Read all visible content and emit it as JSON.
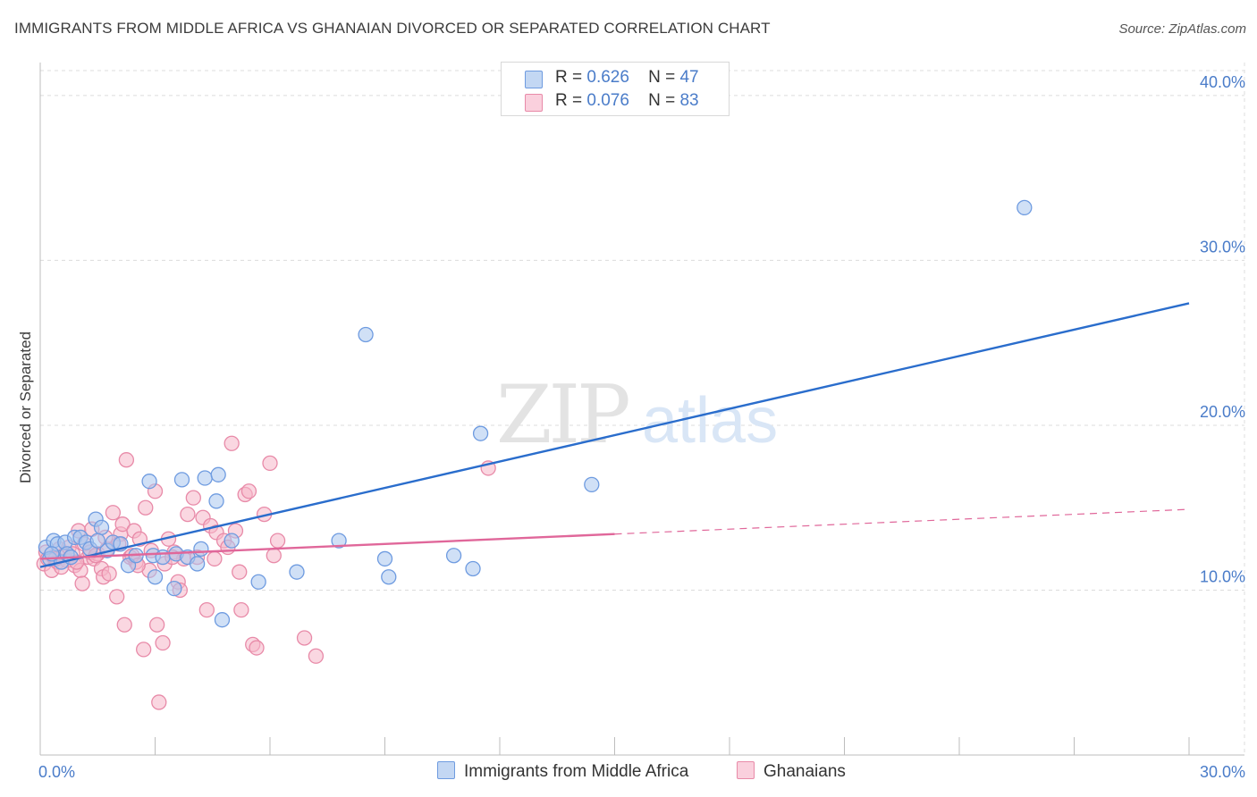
{
  "header": {
    "title": "IMMIGRANTS FROM MIDDLE AFRICA VS GHANAIAN DIVORCED OR SEPARATED CORRELATION CHART",
    "source": "Source: ZipAtlas.com"
  },
  "watermark": {
    "zip": "ZIP",
    "atlas": "atlas"
  },
  "legend": {
    "r_label": "R =",
    "n_label": "N =",
    "series": [
      {
        "r": "0.626",
        "n": "47"
      },
      {
        "r": "0.076",
        "n": "83"
      }
    ]
  },
  "bottom_legend": {
    "series1": "Immigrants from Middle Africa",
    "series2": "Ghanaians"
  },
  "colors": {
    "blue_fill": "#a9c6ef",
    "blue_stroke": "#6e9be0",
    "blue_line": "#2a6dcc",
    "pink_fill": "#f6b6c9",
    "pink_stroke": "#e88aa8",
    "pink_line": "#e0679a",
    "axis_text": "#4a7cc9",
    "grid": "#dcdcdc"
  },
  "chart_data": {
    "type": "scatter",
    "title": "IMMIGRANTS FROM MIDDLE AFRICA VS GHANAIAN DIVORCED OR SEPARATED CORRELATION CHART",
    "xlabel": "",
    "ylabel": "Divorced or Separated",
    "xlim": [
      0,
      30
    ],
    "ylim": [
      0,
      42
    ],
    "x_tick_labels": [
      "0.0%",
      "30.0%"
    ],
    "y_ticks": [
      10,
      20,
      30,
      40
    ],
    "y_tick_labels": [
      "10.0%",
      "20.0%",
      "30.0%",
      "40.0%"
    ],
    "grid": true,
    "legend_position": "top-center",
    "series": [
      {
        "name": "Immigrants from Middle Africa",
        "r": 0.626,
        "n": 47,
        "trend": {
          "x0": 0,
          "y0": 11.4,
          "x1": 30,
          "y1": 27.4,
          "dashed_from": null
        },
        "points": [
          [
            0.15,
            12.6
          ],
          [
            0.25,
            11.9
          ],
          [
            0.35,
            13.0
          ],
          [
            0.45,
            12.8
          ],
          [
            0.55,
            11.7
          ],
          [
            0.65,
            12.9
          ],
          [
            0.7,
            12.2
          ],
          [
            0.8,
            12.0
          ],
          [
            0.9,
            13.2
          ],
          [
            1.05,
            13.2
          ],
          [
            1.2,
            12.9
          ],
          [
            1.3,
            12.5
          ],
          [
            1.45,
            14.3
          ],
          [
            1.6,
            13.8
          ],
          [
            1.75,
            12.4
          ],
          [
            1.9,
            12.9
          ],
          [
            2.1,
            12.8
          ],
          [
            2.3,
            11.5
          ],
          [
            2.5,
            12.1
          ],
          [
            2.85,
            16.6
          ],
          [
            2.95,
            12.1
          ],
          [
            3.0,
            10.8
          ],
          [
            3.2,
            12.0
          ],
          [
            3.5,
            10.1
          ],
          [
            3.55,
            12.2
          ],
          [
            3.7,
            16.7
          ],
          [
            3.85,
            12.0
          ],
          [
            4.1,
            11.6
          ],
          [
            4.2,
            12.5
          ],
          [
            4.3,
            16.8
          ],
          [
            4.6,
            15.4
          ],
          [
            4.65,
            17.0
          ],
          [
            4.75,
            8.2
          ],
          [
            5.0,
            13.0
          ],
          [
            5.7,
            10.5
          ],
          [
            6.7,
            11.1
          ],
          [
            7.8,
            13.0
          ],
          [
            8.5,
            25.5
          ],
          [
            9.0,
            11.9
          ],
          [
            9.1,
            10.8
          ],
          [
            10.8,
            12.1
          ],
          [
            11.3,
            11.3
          ],
          [
            11.5,
            19.5
          ],
          [
            14.4,
            16.4
          ],
          [
            25.7,
            33.2
          ],
          [
            0.3,
            12.2
          ],
          [
            1.5,
            13.0
          ]
        ]
      },
      {
        "name": "Ghanaians",
        "r": 0.076,
        "n": 83,
        "trend": {
          "x0": 0,
          "y0": 11.9,
          "x1": 30,
          "y1": 14.9,
          "dashed_from": 15.0
        },
        "points": [
          [
            0.1,
            11.6
          ],
          [
            0.15,
            12.3
          ],
          [
            0.2,
            11.9
          ],
          [
            0.3,
            11.2
          ],
          [
            0.35,
            12.0
          ],
          [
            0.45,
            11.7
          ],
          [
            0.5,
            12.5
          ],
          [
            0.6,
            12.1
          ],
          [
            0.7,
            11.8
          ],
          [
            0.75,
            12.6
          ],
          [
            0.85,
            12.2
          ],
          [
            0.9,
            11.5
          ],
          [
            1.0,
            13.6
          ],
          [
            1.05,
            11.2
          ],
          [
            1.1,
            10.4
          ],
          [
            1.15,
            12.8
          ],
          [
            1.25,
            12.0
          ],
          [
            1.35,
            13.7
          ],
          [
            1.4,
            11.9
          ],
          [
            1.5,
            12.2
          ],
          [
            1.6,
            11.3
          ],
          [
            1.65,
            10.8
          ],
          [
            1.75,
            12.5
          ],
          [
            1.8,
            11.0
          ],
          [
            1.9,
            14.7
          ],
          [
            2.0,
            9.6
          ],
          [
            2.1,
            13.4
          ],
          [
            2.15,
            14.0
          ],
          [
            2.2,
            7.9
          ],
          [
            2.25,
            17.9
          ],
          [
            2.35,
            12.0
          ],
          [
            2.45,
            13.6
          ],
          [
            2.5,
            11.7
          ],
          [
            2.6,
            13.1
          ],
          [
            2.7,
            6.4
          ],
          [
            2.75,
            15.0
          ],
          [
            2.85,
            11.2
          ],
          [
            2.9,
            12.4
          ],
          [
            3.0,
            16.0
          ],
          [
            3.05,
            7.9
          ],
          [
            3.1,
            3.2
          ],
          [
            3.2,
            6.8
          ],
          [
            3.25,
            11.6
          ],
          [
            3.35,
            13.1
          ],
          [
            3.5,
            12.3
          ],
          [
            3.6,
            10.5
          ],
          [
            3.65,
            10.0
          ],
          [
            3.75,
            11.9
          ],
          [
            3.85,
            14.6
          ],
          [
            4.0,
            15.6
          ],
          [
            4.1,
            12.0
          ],
          [
            4.25,
            14.4
          ],
          [
            4.35,
            8.8
          ],
          [
            4.45,
            13.9
          ],
          [
            4.55,
            11.9
          ],
          [
            4.6,
            13.5
          ],
          [
            4.8,
            13.0
          ],
          [
            5.0,
            18.9
          ],
          [
            5.1,
            13.6
          ],
          [
            5.2,
            11.1
          ],
          [
            5.25,
            8.8
          ],
          [
            5.35,
            15.8
          ],
          [
            5.45,
            16.0
          ],
          [
            5.55,
            6.7
          ],
          [
            5.65,
            6.5
          ],
          [
            5.85,
            14.6
          ],
          [
            6.0,
            17.7
          ],
          [
            6.1,
            12.1
          ],
          [
            6.2,
            13.0
          ],
          [
            6.9,
            7.1
          ],
          [
            7.2,
            6.0
          ],
          [
            11.7,
            17.4
          ],
          [
            0.55,
            11.4
          ],
          [
            1.3,
            12.3
          ],
          [
            2.05,
            12.8
          ],
          [
            2.4,
            12.1
          ],
          [
            0.95,
            11.7
          ],
          [
            1.7,
            13.2
          ],
          [
            3.45,
            12.0
          ],
          [
            4.9,
            12.6
          ],
          [
            0.4,
            11.9
          ],
          [
            2.55,
            11.5
          ],
          [
            1.45,
            12.1
          ]
        ]
      }
    ]
  }
}
